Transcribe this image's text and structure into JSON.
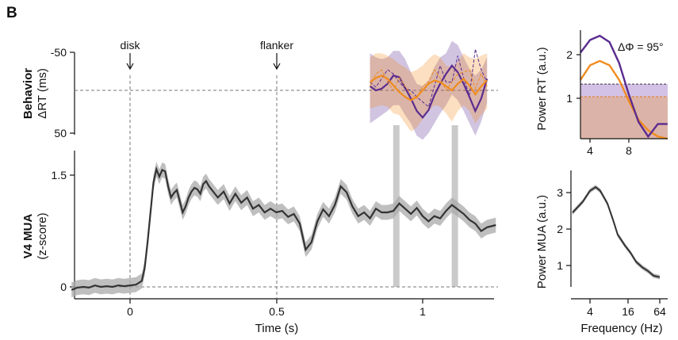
{
  "panel_label": "B",
  "colors": {
    "purple": "#5b2c8f",
    "orange": "#f08c1e",
    "mua": "#333333",
    "mua_band": "#a9a9a9",
    "highlight": "#9e9e9e"
  },
  "chart_data": [
    {
      "id": "behavior",
      "type": "line",
      "ylabel_bold": "Behavior",
      "ylabel_unit": "ΔRT (ms)",
      "ylim": [
        50,
        -50
      ],
      "yticks": [
        "-50",
        "50"
      ],
      "annotations": [
        {
          "label": "disk",
          "x": 0
        },
        {
          "label": "flanker",
          "x": 0.5
        }
      ],
      "reference_line": 0,
      "x": [
        0.82,
        0.84,
        0.86,
        0.88,
        0.9,
        0.92,
        0.94,
        0.96,
        0.98,
        1.0,
        1.02,
        1.04,
        1.06,
        1.08,
        1.1,
        1.12,
        1.14,
        1.16,
        1.18,
        1.2,
        1.22
      ],
      "series": [
        {
          "color": "purple",
          "style": "fitted",
          "values": [
            -5,
            0,
            -2,
            -8,
            -18,
            -16,
            -3,
            10,
            25,
            33,
            24,
            6,
            -8,
            -20,
            -30,
            -22,
            -8,
            8,
            25,
            10,
            -14
          ],
          "band_upper": [
            -45,
            -40,
            -38,
            -40,
            -48,
            -48,
            -38,
            -22,
            -8,
            -5,
            -12,
            -28,
            -40,
            -45,
            -60,
            -55,
            -40,
            -26,
            -18,
            -25,
            -40
          ],
          "band_lower": [
            40,
            35,
            30,
            25,
            18,
            18,
            30,
            40,
            55,
            60,
            52,
            40,
            28,
            18,
            5,
            12,
            25,
            40,
            55,
            38,
            15
          ]
        },
        {
          "color": "purple",
          "style": "raw",
          "values": [
            -10,
            -4,
            -14,
            -25,
            -20,
            -10,
            -2,
            0,
            8,
            14,
            20,
            -5,
            -30,
            -10,
            -10,
            -42,
            -15,
            6,
            -50,
            -25,
            -10
          ]
        },
        {
          "color": "orange",
          "style": "fitted",
          "values": [
            -10,
            -15,
            -18,
            -14,
            -6,
            2,
            8,
            12,
            8,
            0,
            -8,
            -12,
            -10,
            -5,
            0,
            -8,
            -14,
            -6,
            5,
            -5,
            -12
          ],
          "band_upper": [
            -40,
            -45,
            -45,
            -42,
            -38,
            -32,
            -28,
            -22,
            -25,
            -30,
            -38,
            -44,
            -40,
            -30,
            -28,
            -35,
            -45,
            -40,
            -38,
            -42,
            -45
          ],
          "band_lower": [
            22,
            20,
            18,
            20,
            28,
            30,
            40,
            50,
            45,
            35,
            25,
            18,
            20,
            28,
            38,
            25,
            18,
            25,
            40,
            30,
            22
          ]
        },
        {
          "color": "orange",
          "style": "raw",
          "values": [
            -5,
            -20,
            -25,
            -10,
            0,
            -15,
            -5,
            5,
            10,
            -5,
            -10,
            -25,
            -15,
            0,
            -10,
            -20,
            -22,
            -25,
            -2,
            -20,
            -5
          ]
        }
      ]
    },
    {
      "id": "v4mua",
      "type": "line",
      "ylabel_bold": "V4 MUA",
      "ylabel_unit": "(z-score)",
      "xlabel": "Time (s)",
      "xlim": [
        -0.2,
        1.25
      ],
      "ylim": [
        -0.1,
        1.7
      ],
      "xticks": [
        "0",
        "0.5",
        "1"
      ],
      "yticks": [
        "0",
        "1.5"
      ],
      "highlight_x": [
        0.91,
        1.11
      ],
      "x": [
        -0.2,
        -0.18,
        -0.16,
        -0.14,
        -0.12,
        -0.1,
        -0.08,
        -0.06,
        -0.04,
        -0.02,
        0,
        0.02,
        0.04,
        0.05,
        0.06,
        0.07,
        0.08,
        0.09,
        0.1,
        0.11,
        0.12,
        0.13,
        0.14,
        0.15,
        0.16,
        0.17,
        0.18,
        0.19,
        0.2,
        0.21,
        0.22,
        0.23,
        0.24,
        0.25,
        0.26,
        0.27,
        0.28,
        0.29,
        0.3,
        0.32,
        0.34,
        0.36,
        0.38,
        0.4,
        0.42,
        0.44,
        0.46,
        0.48,
        0.5,
        0.52,
        0.54,
        0.56,
        0.58,
        0.6,
        0.62,
        0.64,
        0.66,
        0.68,
        0.7,
        0.72,
        0.74,
        0.76,
        0.78,
        0.8,
        0.82,
        0.84,
        0.86,
        0.88,
        0.9,
        0.92,
        0.94,
        0.96,
        0.98,
        1.0,
        1.02,
        1.04,
        1.06,
        1.08,
        1.1,
        1.12,
        1.14,
        1.16,
        1.18,
        1.2,
        1.22,
        1.25
      ],
      "values": [
        -0.04,
        -0.01,
        0.0,
        -0.01,
        0.02,
        0.0,
        0.01,
        0.0,
        0.02,
        0.01,
        0.02,
        0.03,
        0.08,
        0.25,
        0.6,
        1.0,
        1.4,
        1.58,
        1.48,
        1.57,
        1.55,
        1.35,
        1.2,
        1.26,
        1.3,
        1.15,
        1.0,
        1.08,
        1.2,
        1.28,
        1.33,
        1.31,
        1.25,
        1.38,
        1.42,
        1.35,
        1.3,
        1.25,
        1.2,
        1.28,
        1.12,
        1.25,
        1.13,
        1.2,
        1.05,
        1.1,
        1.0,
        1.05,
        1.0,
        1.02,
        0.94,
        0.98,
        0.85,
        0.5,
        0.6,
        0.88,
        1.04,
        0.95,
        1.1,
        1.35,
        1.27,
        1.08,
        0.95,
        1.0,
        0.92,
        1.05,
        1.0,
        1.0,
        1.02,
        1.12,
        1.05,
        0.98,
        1.06,
        0.95,
        0.88,
        0.95,
        0.92,
        1.02,
        1.1,
        1.04,
        0.98,
        0.9,
        0.85,
        0.75,
        0.8,
        0.83
      ],
      "band_halfwidth": 0.1
    },
    {
      "id": "power_rt",
      "type": "area",
      "ylabel": "Power RT (a.u.)",
      "xlim": [
        2,
        11
      ],
      "ylim": [
        0,
        2.5
      ],
      "xticks": [
        "4",
        "8"
      ],
      "yticks": [
        "1",
        "2"
      ],
      "annotation": "ΔΦ = 95°",
      "x": [
        2,
        3,
        4,
        5,
        6,
        7,
        8,
        9,
        10,
        11
      ],
      "series": [
        {
          "color": "purple",
          "values": [
            2.05,
            2.35,
            2.45,
            2.3,
            1.8,
            1.05,
            0.4,
            0.05,
            0.35,
            0.35
          ],
          "threshold": 1.3
        },
        {
          "color": "orange",
          "values": [
            1.4,
            1.75,
            1.85,
            1.75,
            1.4,
            0.9,
            0.45,
            0.2,
            0.05,
            0.0
          ],
          "threshold": 1.0
        }
      ]
    },
    {
      "id": "power_mua",
      "type": "line",
      "ylabel": "Power MUA (a.u.)",
      "xlabel": "Frequency (Hz)",
      "xscale": "log",
      "xlim": [
        2,
        70
      ],
      "ylim": [
        0.55,
        3.5
      ],
      "xticks": [
        "4",
        "16",
        "64"
      ],
      "yticks": [
        "1",
        "2",
        "3"
      ],
      "x": [
        2,
        3,
        4,
        5,
        6,
        8,
        10,
        12,
        16,
        20,
        25,
        32,
        40,
        50,
        64
      ],
      "values": [
        2.45,
        2.75,
        3.05,
        3.15,
        3.05,
        2.7,
        2.25,
        1.85,
        1.55,
        1.35,
        1.1,
        0.95,
        0.85,
        0.72,
        0.68
      ]
    }
  ]
}
